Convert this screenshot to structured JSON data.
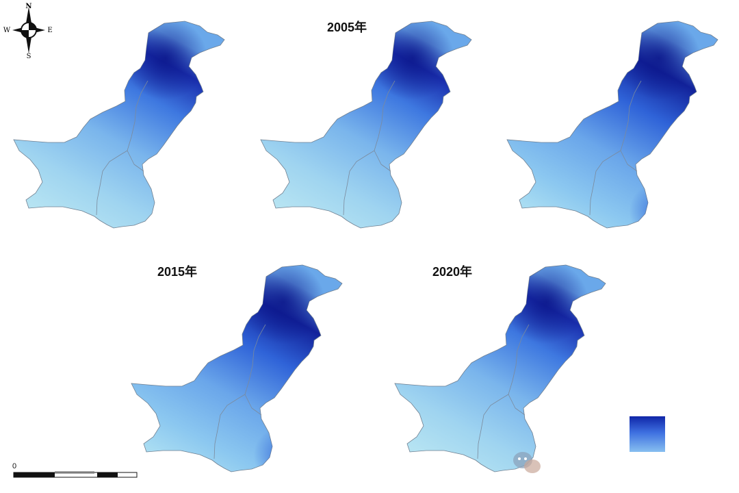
{
  "compass": {
    "n": "N",
    "s": "S",
    "e": "E",
    "w": "W"
  },
  "scale": {
    "zero": "0"
  },
  "panels": [
    {
      "label": ""
    },
    {
      "label": "2005年"
    },
    {
      "label": ""
    },
    {
      "label": "2015年"
    },
    {
      "label": "2020年"
    }
  ],
  "legend": {
    "high_color": "#1026a8",
    "low_color": "#87bff0"
  },
  "colors": {
    "dark": "#0f1f96",
    "mid": "#3b74de",
    "light": "#a9dcf0"
  }
}
